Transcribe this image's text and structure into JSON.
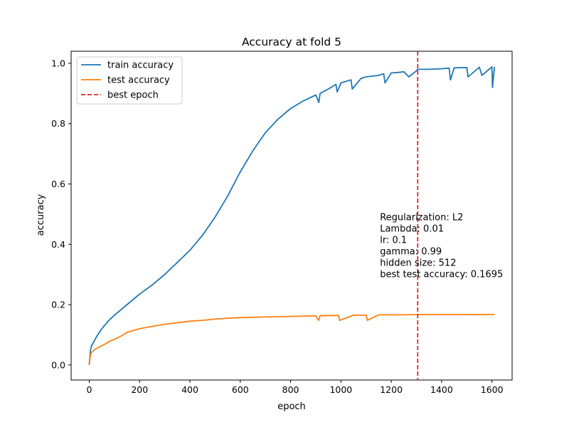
{
  "chart_data": {
    "type": "line",
    "title": "Accuracy at fold 5",
    "xlabel": "epoch",
    "ylabel": "accuracy",
    "xlim": [
      -72,
      1680
    ],
    "ylim": [
      -0.05,
      1.04
    ],
    "xticks": [
      0,
      200,
      400,
      600,
      800,
      1000,
      1200,
      1400,
      1600
    ],
    "yticks": [
      0.0,
      0.2,
      0.4,
      0.6,
      0.8,
      1.0
    ],
    "xtick_labels": [
      "0",
      "200",
      "400",
      "600",
      "800",
      "1000",
      "1200",
      "1400",
      "1600"
    ],
    "ytick_labels": [
      "0.0",
      "0.2",
      "0.4",
      "0.6",
      "0.8",
      "1.0"
    ],
    "grid": false,
    "legend": {
      "placement": "top-left",
      "entries": [
        "train accuracy",
        "test accuracy",
        "best epoch"
      ]
    },
    "series": [
      {
        "name": "train accuracy",
        "color": "#1f77b4",
        "style": "solid",
        "x": [
          0,
          5,
          10,
          20,
          30,
          50,
          75,
          100,
          150,
          200,
          250,
          300,
          350,
          400,
          450,
          500,
          550,
          600,
          650,
          700,
          750,
          800,
          850,
          900,
          912,
          917,
          950,
          980,
          985,
          1000,
          1040,
          1045,
          1080,
          1100,
          1150,
          1170,
          1175,
          1200,
          1230,
          1250,
          1270,
          1300,
          1305,
          1350,
          1400,
          1430,
          1435,
          1450,
          1500,
          1505,
          1550,
          1560,
          1600,
          1602,
          1610
        ],
        "y": [
          0.0,
          0.05,
          0.065,
          0.08,
          0.095,
          0.12,
          0.145,
          0.165,
          0.2,
          0.235,
          0.265,
          0.3,
          0.34,
          0.38,
          0.43,
          0.49,
          0.56,
          0.64,
          0.71,
          0.77,
          0.815,
          0.85,
          0.875,
          0.895,
          0.87,
          0.9,
          0.915,
          0.93,
          0.905,
          0.935,
          0.945,
          0.915,
          0.95,
          0.955,
          0.96,
          0.965,
          0.935,
          0.968,
          0.97,
          0.972,
          0.955,
          0.975,
          0.98,
          0.98,
          0.982,
          0.984,
          0.945,
          0.985,
          0.986,
          0.955,
          0.987,
          0.96,
          0.988,
          0.92,
          0.988
        ]
      },
      {
        "name": "test accuracy",
        "color": "#ff7f0e",
        "style": "solid",
        "x": [
          0,
          5,
          10,
          20,
          40,
          60,
          80,
          100,
          125,
          150,
          200,
          250,
          300,
          350,
          400,
          450,
          500,
          550,
          600,
          650,
          700,
          750,
          800,
          850,
          900,
          912,
          917,
          950,
          990,
          995,
          1050,
          1100,
          1105,
          1150,
          1200,
          1250,
          1300,
          1350,
          1400,
          1450,
          1500,
          1550,
          1600,
          1610
        ],
        "y": [
          0.0,
          0.035,
          0.042,
          0.05,
          0.06,
          0.068,
          0.078,
          0.085,
          0.095,
          0.108,
          0.12,
          0.128,
          0.135,
          0.14,
          0.145,
          0.148,
          0.152,
          0.155,
          0.157,
          0.158,
          0.159,
          0.16,
          0.161,
          0.162,
          0.163,
          0.148,
          0.163,
          0.164,
          0.164,
          0.148,
          0.165,
          0.165,
          0.148,
          0.166,
          0.166,
          0.166,
          0.167,
          0.167,
          0.167,
          0.167,
          0.167,
          0.167,
          0.167,
          0.167
        ]
      }
    ],
    "vlines": [
      {
        "name": "best epoch",
        "x": 1305,
        "color": "#d62728",
        "style": "dashed"
      }
    ],
    "annotation": {
      "x": 1155,
      "y": 0.48,
      "lines": [
        "Regularization: L2",
        "Lambda: 0.01",
        "lr: 0.1",
        "gamma: 0.99",
        "hidden size: 512",
        "best test accuracy: 0.1695"
      ]
    }
  }
}
